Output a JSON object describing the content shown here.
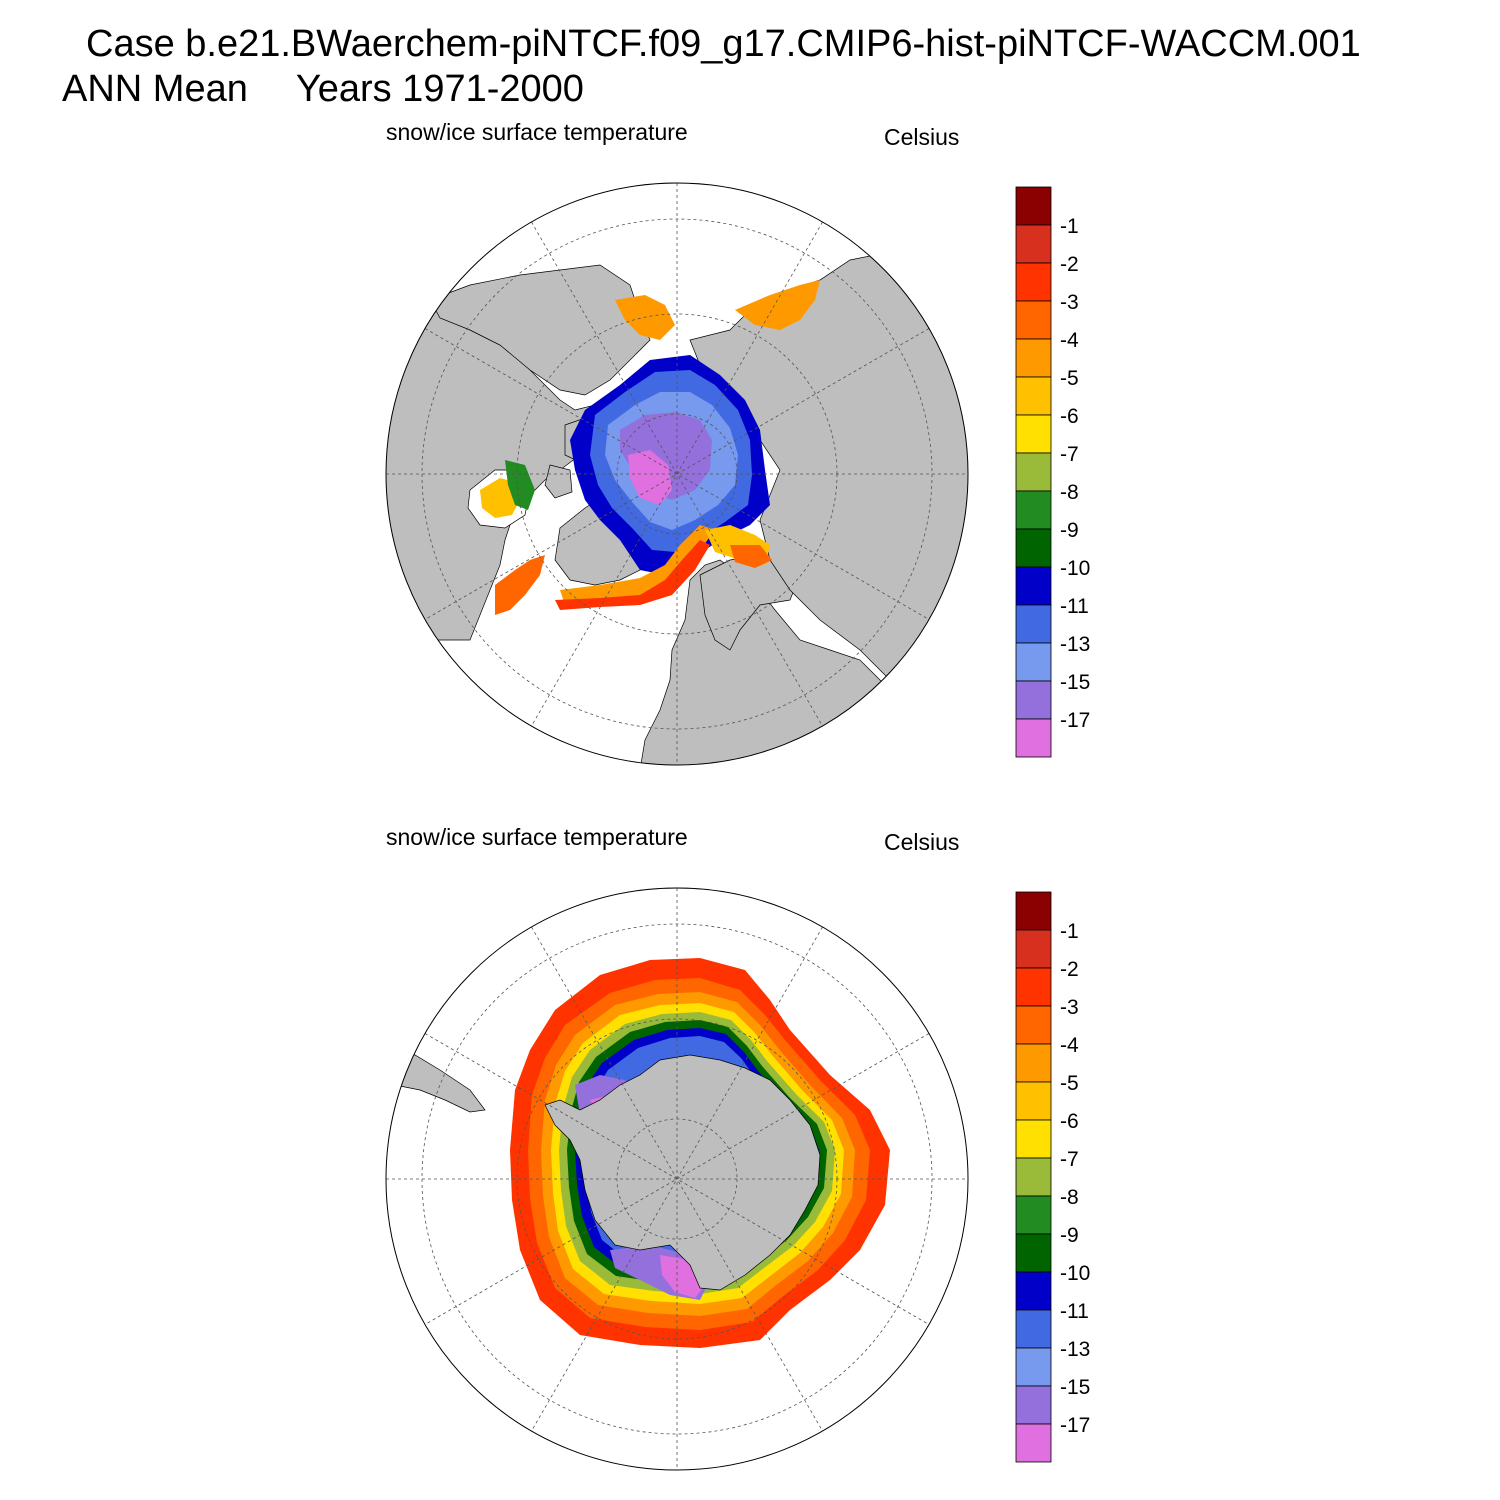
{
  "header": {
    "case_title": "Case b.e21.BWaerchem-piNTCF.f09_g17.CMIP6-hist-piNTCF-WACCM.001",
    "season": "ANN Mean",
    "years": "Years 1971-2000"
  },
  "colors": {
    "land": "#bebebe",
    "open_water": "#ffffff",
    "grid": "#555555",
    "boundary": "#000000"
  },
  "colorbar": {
    "levels": [
      "-1",
      "-2",
      "-3",
      "-4",
      "-5",
      "-6",
      "-7",
      "-8",
      "-9",
      "-10",
      "-11",
      "-13",
      "-15",
      "-17"
    ],
    "colors": [
      "#8b0000",
      "#d7301f",
      "#ff3300",
      "#ff6600",
      "#ff9900",
      "#ffc000",
      "#ffe000",
      "#9aba3a",
      "#228b22",
      "#006400",
      "#0000c8",
      "#4169e1",
      "#7799ee",
      "#9370db",
      "#e070e0"
    ]
  },
  "panels": [
    {
      "hemisphere": "north",
      "variable": "snow/ice surface temperature",
      "units": "Celsius",
      "icon": "north-polar-stereographic-map"
    },
    {
      "hemisphere": "south",
      "variable": "snow/ice surface temperature",
      "units": "Celsius",
      "icon": "south-polar-stereographic-map"
    }
  ]
}
